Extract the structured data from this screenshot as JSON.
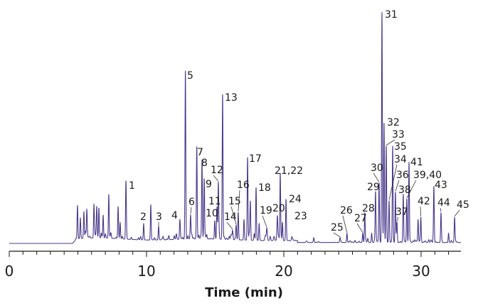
{
  "chart_data": {
    "type": "line",
    "title": "",
    "xlabel": "Time (min)",
    "ylabel": "",
    "xlim": [
      0,
      32.9
    ],
    "x_ticks": [
      0,
      10,
      20,
      30
    ],
    "x_minor_tick_step": 1,
    "grid": false,
    "line_color": "#4b3a8c",
    "y_unit_note": "relative intensity (%) estimated, tallest peak = 100",
    "peaks": [
      {
        "label": "",
        "t": 4.97,
        "h": 14.5
      },
      {
        "label": "",
        "t": 5.18,
        "h": 8
      },
      {
        "label": "",
        "t": 5.44,
        "h": 10
      },
      {
        "label": "",
        "t": 5.65,
        "h": 12
      },
      {
        "label": "",
        "t": 6.17,
        "h": 14
      },
      {
        "label": "",
        "t": 6.37,
        "h": 13
      },
      {
        "label": "",
        "t": 6.53,
        "h": 13
      },
      {
        "label": "",
        "t": 6.84,
        "h": 10
      },
      {
        "label": "",
        "t": 7.25,
        "h": 19
      },
      {
        "label": "",
        "t": 7.93,
        "h": 14
      },
      {
        "label": "",
        "t": 8.08,
        "h": 7
      },
      {
        "label": "1",
        "t": 8.5,
        "h": 24.7
      },
      {
        "label": "2",
        "t": 9.79,
        "h": 7
      },
      {
        "label": "",
        "t": 10.31,
        "h": 15.4
      },
      {
        "label": "3",
        "t": 10.88,
        "h": 6
      },
      {
        "label": "4",
        "t": 12.43,
        "h": 6
      },
      {
        "label": "5",
        "t": 12.83,
        "h": 73
      },
      {
        "label": "6",
        "t": 13.21,
        "h": 10
      },
      {
        "label": "7",
        "t": 13.66,
        "h": 40
      },
      {
        "label": "8",
        "t": 14.04,
        "h": 34
      },
      {
        "label": "9",
        "t": 14.2,
        "h": 25
      },
      {
        "label": "10",
        "t": 14.97,
        "h": 8
      },
      {
        "label": "11",
        "t": 15.13,
        "h": 14
      },
      {
        "label": "12",
        "t": 15.23,
        "h": 24
      },
      {
        "label": "13",
        "t": 15.54,
        "h": 63
      },
      {
        "label": "14",
        "t": 16.27,
        "h": 4
      },
      {
        "label": "15",
        "t": 16.53,
        "h": 6
      },
      {
        "label": "16",
        "t": 16.68,
        "h": 12
      },
      {
        "label": "",
        "t": 17.1,
        "h": 9
      },
      {
        "label": "17",
        "t": 17.36,
        "h": 36
      },
      {
        "label": "",
        "t": 17.56,
        "h": 17
      },
      {
        "label": "18",
        "t": 17.98,
        "h": 23
      },
      {
        "label": "",
        "t": 18.2,
        "h": 6
      },
      {
        "label": "19",
        "t": 18.76,
        "h": 4
      },
      {
        "label": "20",
        "t": 19.53,
        "h": 9
      },
      {
        "label": "21,22",
        "t": 19.74,
        "h": 29
      },
      {
        "label": "23",
        "t": 19.9,
        "h": 8
      },
      {
        "label": "24",
        "t": 20.16,
        "h": 18
      },
      {
        "label": "25",
        "t": 24.1,
        "h": 2
      },
      {
        "label": "26",
        "t": 24.6,
        "h": 4
      },
      {
        "label": "27",
        "t": 25.75,
        "h": 4
      },
      {
        "label": "28",
        "t": 25.9,
        "h": 13
      },
      {
        "label": "",
        "t": 26.4,
        "h": 4
      },
      {
        "label": "29",
        "t": 26.68,
        "h": 22
      },
      {
        "label": "30",
        "t": 26.94,
        "h": 26
      },
      {
        "label": "31",
        "t": 27.15,
        "h": 100
      },
      {
        "label": "32",
        "t": 27.3,
        "h": 52
      },
      {
        "label": "33",
        "t": 27.46,
        "h": 42
      },
      {
        "label": "34",
        "t": 27.67,
        "h": 18
      },
      {
        "label": "35",
        "t": 27.93,
        "h": 42
      },
      {
        "label": "36",
        "t": 28.13,
        "h": 22
      },
      {
        "label": "37",
        "t": 28.24,
        "h": 9
      },
      {
        "label": "38",
        "t": 28.7,
        "h": 21
      },
      {
        "label": "39,40",
        "t": 28.96,
        "h": 19
      },
      {
        "label": "41",
        "t": 29.12,
        "h": 35
      },
      {
        "label": "",
        "t": 29.78,
        "h": 10
      },
      {
        "label": "42",
        "t": 29.98,
        "h": 11
      },
      {
        "label": "43",
        "t": 30.93,
        "h": 24
      },
      {
        "label": "44",
        "t": 31.45,
        "h": 13
      },
      {
        "label": "",
        "t": 32.0,
        "h": 4
      },
      {
        "label": "45",
        "t": 32.44,
        "h": 11
      }
    ]
  }
}
